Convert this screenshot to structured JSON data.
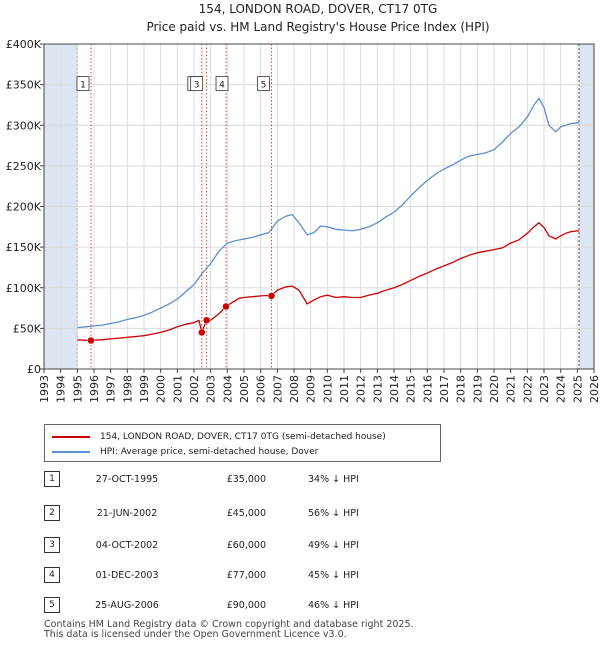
{
  "title_line1": "154, LONDON ROAD, DOVER, CT17 0TG",
  "title_line2": "Price paid vs. HM Land Registry's House Price Index (HPI)",
  "colors": {
    "property": "#cc0000",
    "hpi": "#5b8fd1",
    "shade": "#dce6f3",
    "marker_line": "#dd4444"
  },
  "legend": {
    "property": "154, LONDON ROAD, DOVER, CT17 0TG (semi-detached house)",
    "hpi": "HPI: Average price, semi-detached house, Dover"
  },
  "sales": [
    {
      "num": "1",
      "date": "27-OCT-1995",
      "price": "£35,000",
      "hpi_diff": "34% ↓ HPI"
    },
    {
      "num": "2",
      "date": "21-JUN-2002",
      "price": "£45,000",
      "hpi_diff": "56% ↓ HPI"
    },
    {
      "num": "3",
      "date": "04-OCT-2002",
      "price": "£60,000",
      "hpi_diff": "49% ↓ HPI"
    },
    {
      "num": "4",
      "date": "01-DEC-2003",
      "price": "£77,000",
      "hpi_diff": "45% ↓ HPI"
    },
    {
      "num": "5",
      "date": "25-AUG-2006",
      "price": "£90,000",
      "hpi_diff": "46% ↓ HPI"
    }
  ],
  "footer": {
    "line1": "Contains HM Land Registry data © Crown copyright and database right 2025.",
    "line2": "This data is licensed under the Open Government Licence v3.0."
  },
  "chart_data": {
    "type": "line",
    "xlim": [
      1993,
      2026
    ],
    "ylim": [
      0,
      400000
    ],
    "x_ticks": [
      1993,
      1994,
      1995,
      1996,
      1997,
      1998,
      1999,
      2000,
      2001,
      2002,
      2003,
      2004,
      2005,
      2006,
      2007,
      2008,
      2009,
      2010,
      2011,
      2012,
      2013,
      2014,
      2015,
      2016,
      2017,
      2018,
      2019,
      2020,
      2021,
      2022,
      2023,
      2024,
      2025,
      2026
    ],
    "y_ticks": [
      {
        "value": 0,
        "label": "£0"
      },
      {
        "value": 50000,
        "label": "£50K"
      },
      {
        "value": 100000,
        "label": "£100K"
      },
      {
        "value": 150000,
        "label": "£150K"
      },
      {
        "value": 200000,
        "label": "£200K"
      },
      {
        "value": 250000,
        "label": "£250K"
      },
      {
        "value": 300000,
        "label": "£300K"
      },
      {
        "value": 350000,
        "label": "£350K"
      },
      {
        "value": 400000,
        "label": "£400K"
      }
    ],
    "shaded_ranges": [
      [
        1993,
        1995.0
      ],
      [
        2025.1,
        2026
      ]
    ],
    "series": [
      {
        "name": "HPI: Average price, semi-detached house, Dover",
        "x": [
          1995,
          1995.5,
          1996,
          1996.5,
          1997,
          1997.5,
          1998,
          1998.5,
          1999,
          1999.5,
          2000,
          2000.5,
          2001,
          2001.5,
          2002,
          2002.5,
          2003,
          2003.5,
          2004,
          2004.5,
          2005,
          2005.5,
          2006,
          2006.5,
          2007,
          2007.5,
          2007.9,
          2008.3,
          2008.8,
          2009.2,
          2009.6,
          2010,
          2010.5,
          2011,
          2011.5,
          2012,
          2012.5,
          2013,
          2013.5,
          2014,
          2014.5,
          2015,
          2015.5,
          2016,
          2016.5,
          2017,
          2017.5,
          2018,
          2018.5,
          2019,
          2019.5,
          2020,
          2020.5,
          2021,
          2021.5,
          2022,
          2022.4,
          2022.7,
          2023,
          2023.3,
          2023.7,
          2024,
          2024.3,
          2024.6,
          2025,
          2025.1
        ],
        "values": [
          51000,
          52000,
          53000,
          54000,
          56000,
          58000,
          61000,
          63000,
          66000,
          70000,
          75000,
          80000,
          86000,
          95000,
          104000,
          118000,
          130000,
          145000,
          155000,
          158000,
          160000,
          162000,
          165000,
          168000,
          182000,
          188000,
          190000,
          180000,
          165000,
          168000,
          176000,
          175000,
          172000,
          171000,
          170000,
          172000,
          175000,
          180000,
          187000,
          193000,
          202000,
          213000,
          223000,
          232000,
          240000,
          246000,
          251000,
          257000,
          262000,
          264000,
          266000,
          270000,
          279000,
          290000,
          298000,
          310000,
          325000,
          333000,
          322000,
          300000,
          292000,
          298000,
          300000,
          302000,
          303000,
          303000
        ]
      },
      {
        "name": "154, LONDON ROAD, DOVER, CT17 0TG (semi-detached house)",
        "x": [
          1995,
          1995.82,
          1996,
          1996.5,
          1997,
          1997.5,
          1998,
          1998.5,
          1999,
          1999.5,
          2000,
          2000.5,
          2001,
          2001.5,
          2002,
          2002.3,
          2002.47,
          2002.75,
          2003,
          2003.5,
          2003.92,
          2004.3,
          2004.7,
          2005,
          2005.5,
          2006,
          2006.4,
          2006.65,
          2007,
          2007.5,
          2007.9,
          2008.3,
          2008.8,
          2009.2,
          2009.6,
          2010,
          2010.5,
          2011,
          2011.5,
          2012,
          2012.5,
          2013,
          2013.5,
          2014,
          2014.5,
          2015,
          2015.5,
          2016,
          2016.5,
          2017,
          2017.5,
          2018,
          2018.5,
          2019,
          2019.5,
          2020,
          2020.5,
          2021,
          2021.5,
          2022,
          2022.4,
          2022.7,
          2023,
          2023.3,
          2023.7,
          2024,
          2024.3,
          2024.6,
          2025,
          2025.1
        ],
        "values": [
          36000,
          35000,
          35500,
          36000,
          37000,
          38000,
          39000,
          40000,
          41000,
          43000,
          45000,
          48000,
          52000,
          55000,
          57000,
          60000,
          45000,
          60000,
          60000,
          68000,
          77000,
          82000,
          87000,
          88000,
          89000,
          90000,
          90500,
          90000,
          97000,
          101000,
          102000,
          97000,
          80000,
          85000,
          89000,
          91000,
          88000,
          89000,
          88000,
          88000,
          91000,
          93000,
          97000,
          100000,
          104000,
          109000,
          114000,
          118000,
          123000,
          127000,
          131000,
          136000,
          140000,
          143000,
          145000,
          147000,
          149000,
          155000,
          159000,
          167000,
          175000,
          180000,
          174000,
          164000,
          160000,
          164000,
          167000,
          169000,
          170000,
          170000
        ]
      }
    ],
    "sale_points": [
      {
        "num": "1",
        "x": 1995.82,
        "y": 35000,
        "label_y": 350000
      },
      {
        "num": "2",
        "x": 2002.47,
        "y": 45000,
        "label_y": 350000
      },
      {
        "num": "3",
        "x": 2002.76,
        "y": 60000,
        "label_y": 350000
      },
      {
        "num": "4",
        "x": 2003.92,
        "y": 77000,
        "label_y": 350000
      },
      {
        "num": "5",
        "x": 2006.65,
        "y": 90000,
        "label_y": 350000
      }
    ]
  }
}
